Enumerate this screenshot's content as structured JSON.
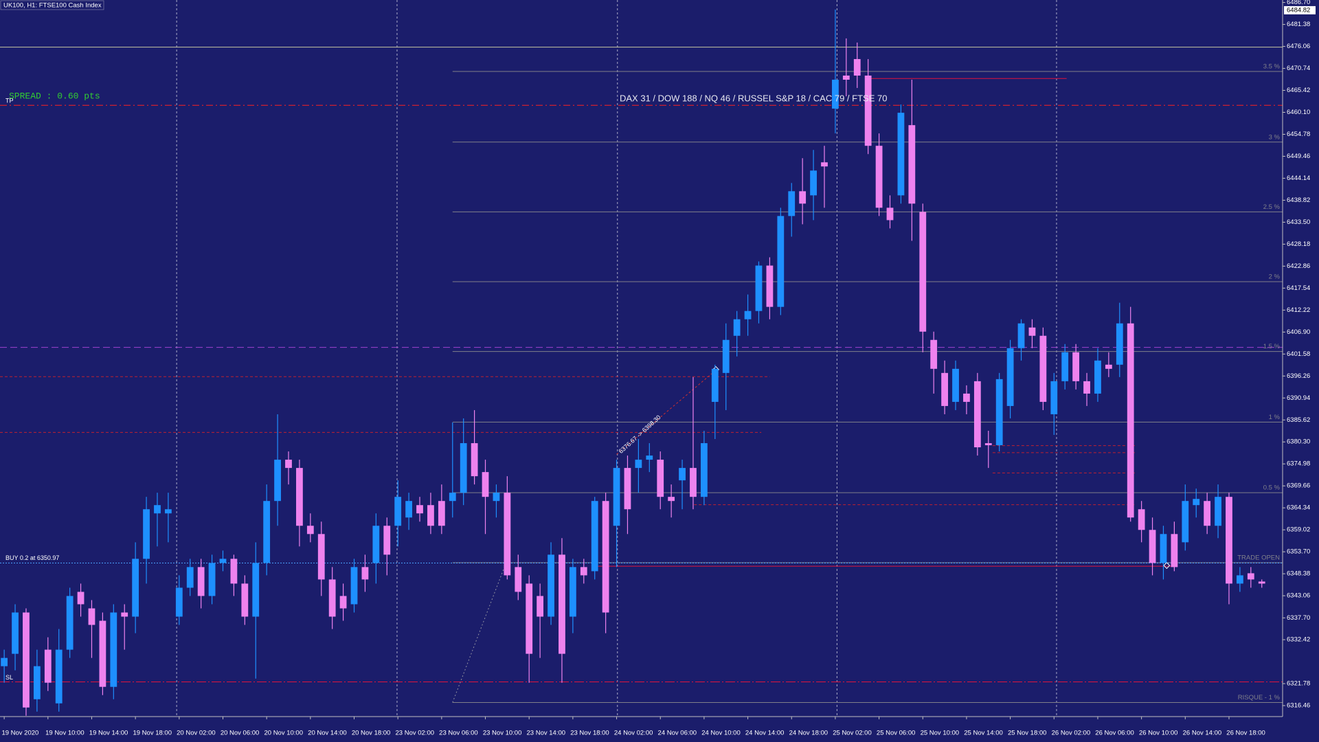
{
  "chart_data": {
    "type": "candlestick",
    "title": "UK100, H1: FTSE100 Cash Index",
    "categories": [
      "19 Nov 2020",
      null,
      null,
      null,
      "19 Nov 10:00",
      null,
      null,
      null,
      "19 Nov 14:00",
      null,
      null,
      null,
      "19 Nov 18:00",
      null,
      null,
      null,
      "20 Nov 02:00",
      null,
      null,
      null,
      "20 Nov 06:00",
      null,
      null,
      null,
      "20 Nov 10:00",
      null,
      null,
      null,
      "20 Nov 14:00",
      null,
      null,
      null,
      "20 Nov 18:00",
      null,
      null,
      null,
      "23 Nov 02:00",
      null,
      null,
      null,
      "23 Nov 06:00",
      null,
      null,
      null,
      "23 Nov 10:00",
      null,
      null,
      null,
      "23 Nov 14:00",
      null,
      null,
      null,
      "23 Nov 18:00",
      null,
      null,
      null,
      "24 Nov 02:00",
      null,
      null,
      null,
      "24 Nov 06:00",
      null,
      null,
      null,
      "24 Nov 10:00",
      null,
      null,
      null,
      "24 Nov 14:00",
      null,
      null,
      null,
      "24 Nov 18:00",
      null,
      null,
      null,
      "25 Nov 02:00",
      null,
      null,
      null,
      "25 Nov 06:00",
      null,
      null,
      null,
      "25 Nov 10:00",
      null,
      null,
      null,
      "25 Nov 14:00",
      null,
      null,
      null,
      "25 Nov 18:00",
      null,
      null,
      null,
      "26 Nov 02:00",
      null,
      null,
      null,
      "26 Nov 06:00",
      null,
      null,
      null,
      "26 Nov 10:00",
      null,
      null,
      null,
      "26 Nov 14:00",
      null,
      null,
      null,
      "26 Nov 18:00",
      null,
      null,
      null
    ],
    "open": [
      6326,
      6329,
      6339,
      6318,
      6330,
      6317,
      6330,
      6344,
      6340,
      6337,
      6321,
      6339,
      6338,
      6352,
      6363,
      6363,
      6338,
      6345,
      6350,
      6343,
      6351,
      6352,
      6346,
      6338,
      6351,
      6366,
      6376,
      6374,
      6360,
      6358,
      6347,
      6343,
      6341,
      6350,
      6351,
      6360,
      6360,
      6362,
      6365,
      6365,
      6366,
      6366,
      6368,
      6380,
      6373,
      6366,
      6368,
      6350,
      6346,
      6343,
      6338,
      6353,
      6338,
      6350,
      6349,
      6366,
      6360,
      6374,
      6374,
      6376,
      6376,
      6367,
      6371,
      6374,
      6367,
      6390,
      6397,
      6406,
      6410,
      6412,
      6423,
      6413,
      6435,
      6441,
      6440,
      6448,
      6461,
      6469,
      6473,
      6469,
      6452,
      6437,
      6440,
      6457,
      6436,
      6405,
      6397,
      6390,
      6392,
      6395,
      6380,
      6379.5,
      6389,
      6403,
      6408,
      6406,
      6387,
      6395,
      6402,
      6395,
      6392,
      6399,
      6399,
      6409,
      6364,
      6359,
      6351,
      6358,
      6356,
      6365,
      6366,
      6360,
      6367,
      6346,
      6348.5,
      6346.5
    ],
    "high": [
      6330,
      6341,
      6340,
      6330,
      6333,
      6335,
      6345,
      6346,
      6342,
      6339,
      6341,
      6341,
      6356,
      6367,
      6368,
      6368,
      6348,
      6352,
      6352,
      6353,
      6354,
      6353,
      6348,
      6356,
      6370,
      6387,
      6378,
      6376,
      6363,
      6361,
      6350,
      6346,
      6352,
      6353,
      6363,
      6362,
      6371,
      6368,
      6367,
      6368,
      6370,
      6385,
      6386,
      6388,
      6376,
      6370,
      6372,
      6353,
      6348,
      6346,
      6356,
      6357,
      6352,
      6352,
      6367,
      6368,
      6376,
      6377,
      6381,
      6380,
      6378,
      6370,
      6376,
      6396,
      6383,
      6399,
      6409,
      6412,
      6416,
      6424,
      6425,
      6437,
      6443,
      6449,
      6451,
      6452,
      6485,
      6478,
      6477,
      6473,
      6455,
      6440,
      6462,
      6468,
      6438,
      6407,
      6400,
      6400,
      6394,
      6397,
      6383,
      6397,
      6405,
      6410,
      6410,
      6408,
      6397,
      6404,
      6404,
      6397,
      6403,
      6402,
      6414,
      6413,
      6366,
      6362,
      6360,
      6361,
      6370,
      6369,
      6368,
      6370,
      6368,
      6350,
      6350,
      6347
    ],
    "low": [
      6322,
      6325,
      6314,
      6315,
      6320,
      6315,
      6328,
      6338,
      6328,
      6319,
      6318,
      6330,
      6334,
      6346,
      6355,
      6356,
      6336,
      6343,
      6340,
      6341,
      6349,
      6343,
      6336,
      6323,
      6348,
      6360,
      6370,
      6355,
      6356,
      6343,
      6335,
      6337,
      6339,
      6344,
      6346,
      6348,
      6355,
      6359,
      6361,
      6358,
      6358,
      6362,
      6365,
      6370,
      6358,
      6362,
      6347,
      6342,
      6322,
      6328,
      6336,
      6322,
      6334,
      6346,
      6347,
      6334,
      6350,
      6358,
      6368,
      6373,
      6364,
      6362,
      6364,
      6364,
      6365,
      6381,
      6388,
      6401,
      6406,
      6409,
      6410,
      6411,
      6430,
      6433,
      6434,
      6437,
      6455,
      6464,
      6466,
      6450,
      6435,
      6432,
      6438,
      6429,
      6402,
      6392,
      6387,
      6388,
      6387,
      6377,
      6374,
      6378,
      6386,
      6400,
      6403,
      6388,
      6382,
      6393,
      6393,
      6389,
      6390,
      6396,
      6396,
      6361,
      6356,
      6348,
      6347,
      6349,
      6354,
      6362,
      6358,
      6357,
      6341,
      6344,
      6345,
      6345
    ],
    "close": [
      6328,
      6339,
      6316,
      6326,
      6322,
      6330,
      6343,
      6341,
      6336,
      6321,
      6339,
      6338,
      6352,
      6364,
      6365,
      6364,
      6345,
      6350,
      6343,
      6351,
      6352,
      6346,
      6338,
      6351,
      6366,
      6376,
      6374,
      6360,
      6358,
      6347,
      6338,
      6340,
      6350,
      6347,
      6360,
      6353,
      6367,
      6366,
      6363,
      6360,
      6360,
      6368,
      6380,
      6372,
      6367,
      6368,
      6348,
      6344,
      6329,
      6338,
      6353,
      6329,
      6350,
      6348,
      6366,
      6339,
      6374,
      6364,
      6376,
      6377,
      6367,
      6366,
      6374,
      6367,
      6380,
      6398,
      6405,
      6410,
      6412,
      6423,
      6413,
      6435,
      6441,
      6438,
      6446,
      6447,
      6468,
      6468,
      6469,
      6452,
      6437,
      6434,
      6460,
      6438,
      6407,
      6398,
      6389,
      6398,
      6390,
      6379,
      6379.5,
      6395.5,
      6403,
      6409,
      6406,
      6390,
      6395,
      6402,
      6395,
      6392,
      6400,
      6398,
      6409,
      6362,
      6359,
      6351,
      6358,
      6350,
      6366,
      6366.5,
      6360,
      6367,
      6346,
      6348,
      6347,
      6346
    ],
    "up_color": "#1e90ff",
    "down_color": "#ee82ee",
    "ylim": [
      6313.8,
      6487.3
    ],
    "yticks": [
      {
        "value": 6486.7,
        "label": "6486.70"
      },
      6481.38,
      6476.06,
      6470.74,
      6465.42,
      {
        "value": 6460.1,
        "label": "6460.10"
      },
      6454.78,
      6449.46,
      6444.14,
      6438.82,
      {
        "value": 6433.5,
        "label": "6433.50"
      },
      6428.18,
      6422.86,
      6417.54,
      6412.22,
      {
        "value": 6406.9,
        "label": "6406.90"
      },
      6401.58,
      6396.26,
      6390.94,
      6385.62,
      {
        "value": 6380.3,
        "label": "6380.30"
      },
      6374.98,
      6369.66,
      6364.34,
      6359.02,
      {
        "value": 6353.7,
        "label": "6353.70"
      },
      6348.38,
      6343.06,
      {
        "value": 6337.7,
        "label": "6337.70"
      },
      6332.42,
      6321.78,
      6316.46
    ],
    "bid_price": 6484.82,
    "grid": false
  },
  "overlay": {
    "spread": "SPREAD : 0.60 pts",
    "indices": "DAX 31 / DOW 188 / NQ 46 / RUSSEL S&P 18 / CAC 79 / FTSE 70",
    "trade_label": "6376.67 -> 6398.30",
    "tp": {
      "label": "TP",
      "value": 6461.8,
      "color": "#ff2020"
    },
    "sl": {
      "label": "SL",
      "value": 6322.2,
      "color": "#e0143c"
    },
    "buy": {
      "label": "BUY 0.2 at 6350.97",
      "value": 6350.97,
      "color": "#4aa3ff"
    },
    "risk_levels": [
      {
        "label": "3.5 %",
        "value": 6470.0
      },
      {
        "label": "3 %",
        "value": 6452.9
      },
      {
        "label": "2.5 %",
        "value": 6436.0
      },
      {
        "label": "2 %",
        "value": 6419.1
      },
      {
        "label": "1.5 %",
        "value": 6402.2
      },
      {
        "label": "1 %",
        "value": 6385.1
      },
      {
        "label": "0.5 %",
        "value": 6368.0
      },
      {
        "label": "TRADE OPEN",
        "value": 6351.06
      },
      {
        "label": "RISQUE - 1 %",
        "value": 6317.2
      }
    ],
    "risk_color": "#80808a",
    "levels": [
      {
        "value": 6475.88,
        "color": "#c8c8a0"
      },
      {
        "value": 6403.2,
        "color": "#a040d0"
      },
      {
        "value": 6396.1,
        "color": "#c02030"
      },
      {
        "value": 6382.6,
        "color": "#c02030"
      },
      {
        "value": 6350.2,
        "color": "#e0143c"
      },
      {
        "value": 6468.3,
        "color": "#e0143c"
      },
      {
        "value": 6379.4,
        "color": "#c02030"
      },
      {
        "value": 6377.7,
        "color": "#c02030"
      },
      {
        "value": 6372.8,
        "color": "#c02030"
      },
      {
        "value": 6365.1,
        "color": "#c02030"
      }
    ]
  }
}
